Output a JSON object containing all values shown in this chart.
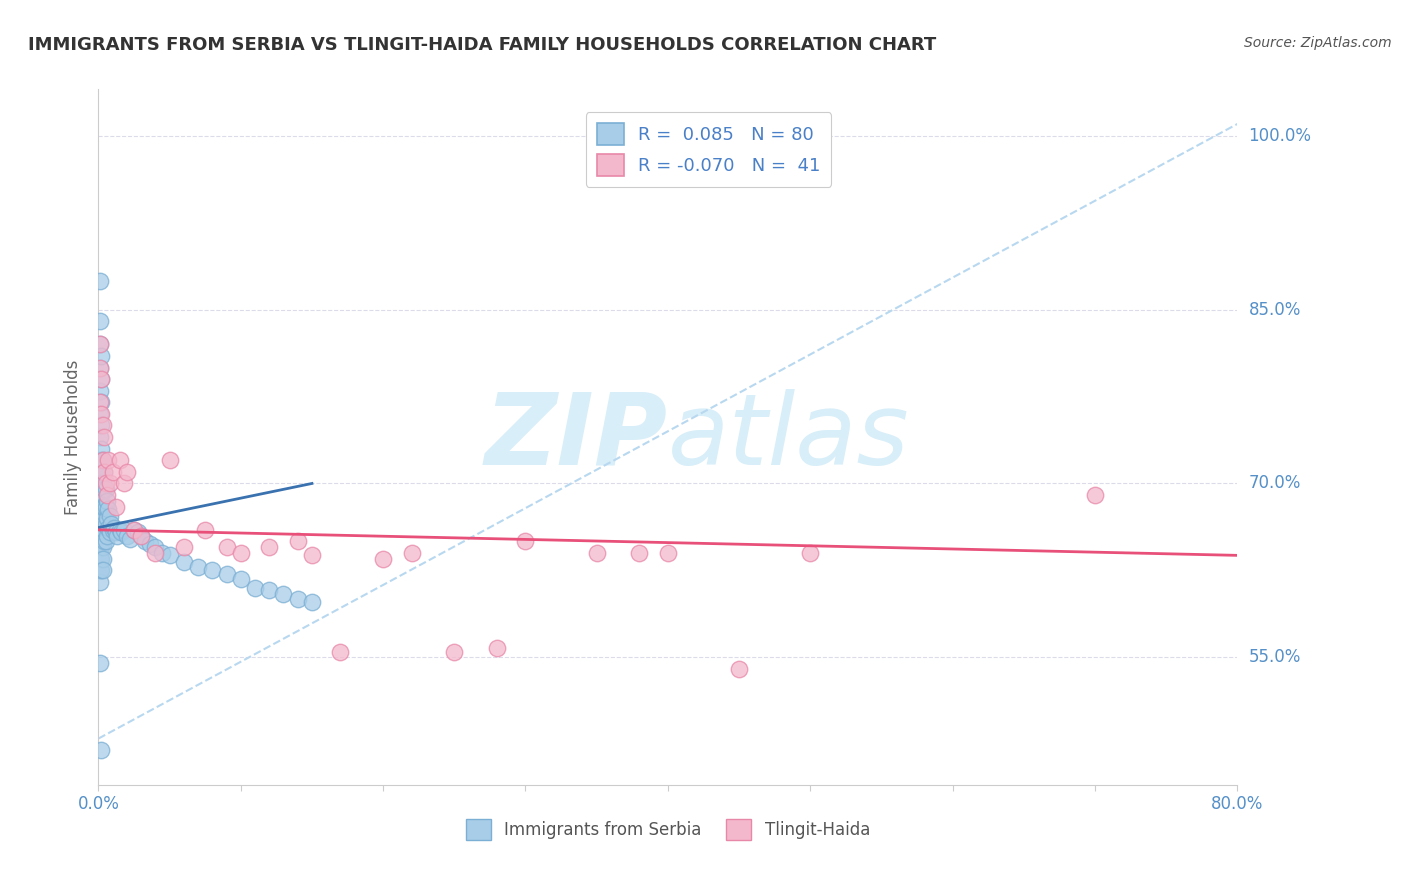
{
  "title": "IMMIGRANTS FROM SERBIA VS TLINGIT-HAIDA FAMILY HOUSEHOLDS CORRELATION CHART",
  "source": "Source: ZipAtlas.com",
  "xlabel_blue": "Immigrants from Serbia",
  "xlabel_pink": "Tlingit-Haida",
  "ylabel": "Family Households",
  "xlim": [
    0.0,
    0.8
  ],
  "ylim": [
    0.44,
    1.04
  ],
  "ytick_vals": [
    0.55,
    0.7,
    0.85,
    1.0
  ],
  "ytick_labels": [
    "55.0%",
    "70.0%",
    "85.0%",
    "100.0%"
  ],
  "xtick_vals": [
    0.0,
    0.1,
    0.2,
    0.3,
    0.4,
    0.5,
    0.6,
    0.7,
    0.8
  ],
  "xtick_labels": [
    "0.0%",
    "",
    "",
    "",
    "",
    "",
    "",
    "",
    "80.0%"
  ],
  "legend_r_blue": "R =  0.085",
  "legend_n_blue": "N = 80",
  "legend_r_pink": "R = -0.070",
  "legend_n_pink": "N =  41",
  "blue_color": "#A8CDE8",
  "blue_edge_color": "#7BAFD4",
  "pink_color": "#F4B8CC",
  "pink_edge_color": "#E888A8",
  "blue_line_color": "#3A72B0",
  "pink_line_color": "#E8507A",
  "dash_line_color": "#B8D8F0",
  "watermark_color": "#D8EEF8",
  "background_color": "#FFFFFF",
  "grid_color": "#D8D8E8",
  "title_color": "#333333",
  "source_color": "#555555",
  "tick_color": "#5590C8",
  "legend_text_color": "#4A80C8",
  "blue_scatter_x": [
    0.001,
    0.001,
    0.001,
    0.001,
    0.001,
    0.001,
    0.001,
    0.001,
    0.001,
    0.001,
    0.001,
    0.001,
    0.001,
    0.001,
    0.001,
    0.002,
    0.002,
    0.002,
    0.002,
    0.002,
    0.002,
    0.002,
    0.002,
    0.002,
    0.002,
    0.002,
    0.002,
    0.003,
    0.003,
    0.003,
    0.003,
    0.003,
    0.003,
    0.003,
    0.004,
    0.004,
    0.004,
    0.004,
    0.004,
    0.005,
    0.005,
    0.005,
    0.005,
    0.006,
    0.006,
    0.006,
    0.007,
    0.007,
    0.008,
    0.008,
    0.009,
    0.01,
    0.011,
    0.012,
    0.013,
    0.015,
    0.016,
    0.018,
    0.02,
    0.022,
    0.025,
    0.028,
    0.03,
    0.033,
    0.036,
    0.04,
    0.045,
    0.05,
    0.06,
    0.07,
    0.08,
    0.09,
    0.1,
    0.11,
    0.12,
    0.13,
    0.14,
    0.15,
    0.001,
    0.002
  ],
  "blue_scatter_y": [
    0.875,
    0.84,
    0.82,
    0.8,
    0.78,
    0.76,
    0.74,
    0.72,
    0.7,
    0.68,
    0.66,
    0.645,
    0.635,
    0.625,
    0.615,
    0.81,
    0.79,
    0.77,
    0.75,
    0.73,
    0.71,
    0.69,
    0.67,
    0.655,
    0.645,
    0.635,
    0.625,
    0.72,
    0.7,
    0.68,
    0.66,
    0.645,
    0.635,
    0.625,
    0.71,
    0.695,
    0.68,
    0.665,
    0.65,
    0.695,
    0.68,
    0.665,
    0.65,
    0.685,
    0.67,
    0.655,
    0.678,
    0.662,
    0.672,
    0.658,
    0.665,
    0.66,
    0.662,
    0.658,
    0.655,
    0.66,
    0.658,
    0.66,
    0.655,
    0.652,
    0.66,
    0.658,
    0.655,
    0.65,
    0.648,
    0.645,
    0.64,
    0.638,
    0.632,
    0.628,
    0.625,
    0.622,
    0.618,
    0.61,
    0.608,
    0.605,
    0.6,
    0.598,
    0.545,
    0.47
  ],
  "pink_scatter_x": [
    0.001,
    0.001,
    0.001,
    0.002,
    0.002,
    0.003,
    0.003,
    0.004,
    0.004,
    0.005,
    0.006,
    0.007,
    0.008,
    0.01,
    0.012,
    0.015,
    0.018,
    0.02,
    0.025,
    0.03,
    0.04,
    0.05,
    0.06,
    0.075,
    0.09,
    0.1,
    0.12,
    0.14,
    0.15,
    0.17,
    0.2,
    0.22,
    0.25,
    0.28,
    0.3,
    0.35,
    0.38,
    0.4,
    0.45,
    0.5,
    0.7
  ],
  "pink_scatter_y": [
    0.82,
    0.8,
    0.77,
    0.79,
    0.76,
    0.75,
    0.72,
    0.74,
    0.71,
    0.7,
    0.69,
    0.72,
    0.7,
    0.71,
    0.68,
    0.72,
    0.7,
    0.71,
    0.66,
    0.655,
    0.64,
    0.72,
    0.645,
    0.66,
    0.645,
    0.64,
    0.645,
    0.65,
    0.638,
    0.555,
    0.635,
    0.64,
    0.555,
    0.558,
    0.65,
    0.64,
    0.64,
    0.64,
    0.54,
    0.64,
    0.69
  ]
}
